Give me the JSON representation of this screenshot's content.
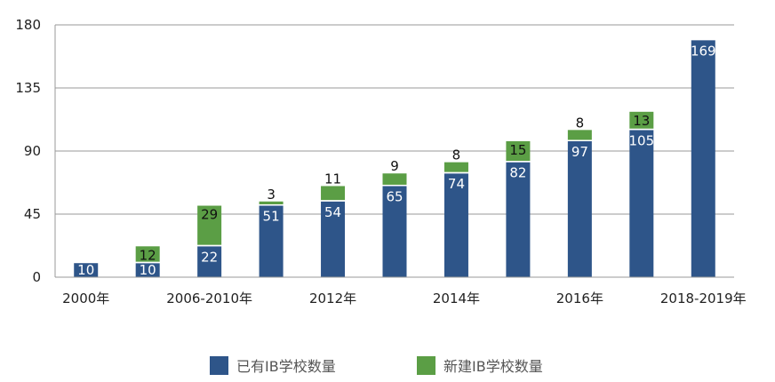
{
  "chart_data": {
    "type": "bar",
    "stacked": true,
    "categories": [
      "2000年",
      "",
      "2006-2010年",
      "",
      "2012年",
      "",
      "2014年",
      "",
      "2016年",
      "",
      "2018-2019年"
    ],
    "x_tick_labels": [
      "2000年",
      "2006-2010年",
      "2012年",
      "2014年",
      "2016年",
      "2018-2019年"
    ],
    "series": [
      {
        "name": "已有IB学校数量",
        "color": "#2e5589",
        "values": [
          10,
          10,
          22,
          51,
          54,
          65,
          74,
          82,
          97,
          105,
          169
        ]
      },
      {
        "name": "新建IB学校数量",
        "color": "#5b9e45",
        "values": [
          0,
          12,
          29,
          3,
          11,
          9,
          8,
          15,
          8,
          13,
          0
        ]
      }
    ],
    "data_labels": {
      "existing": [
        "10",
        "10",
        "22",
        "51",
        "54",
        "65",
        "74",
        "82",
        "97",
        "105",
        "169"
      ],
      "new": [
        "",
        "12",
        "29",
        "3",
        "11",
        "9",
        "8",
        "15",
        "8",
        "13",
        ""
      ]
    },
    "ylim": [
      0,
      180
    ],
    "yticks": [
      "0",
      "45",
      "90",
      "135",
      "180"
    ],
    "grid": true,
    "legend_position": "bottom"
  }
}
